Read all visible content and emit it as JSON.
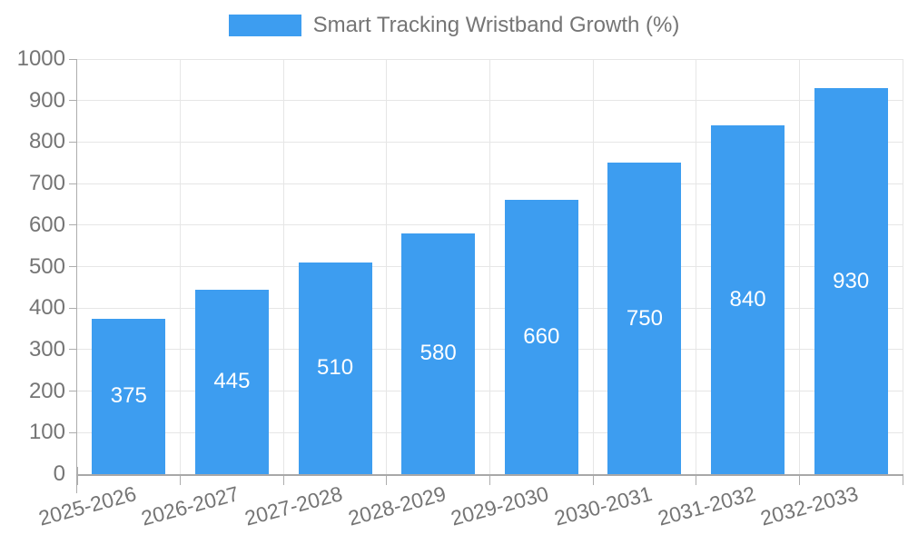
{
  "legend": {
    "label": "Smart Tracking Wristband Growth (%)"
  },
  "chart_data": {
    "type": "bar",
    "title": "Smart Tracking Wristband Growth (%)",
    "series_name": "Smart Tracking Wristband Growth (%)",
    "categories": [
      "2025-2026",
      "2026-2027",
      "2027-2028",
      "2028-2029",
      "2029-2030",
      "2030-2031",
      "2031-2032",
      "2032-2033"
    ],
    "values": [
      375,
      445,
      510,
      580,
      660,
      750,
      840,
      930
    ],
    "xlabel": "",
    "ylabel": "",
    "ylim": [
      0,
      1000
    ],
    "ytick_step": 100,
    "ytick_labels": [
      "0",
      "100",
      "200",
      "300",
      "400",
      "500",
      "600",
      "700",
      "800",
      "900",
      "1000"
    ],
    "grid": true,
    "legend_position": "top",
    "value_labels_inside": true
  },
  "colors": {
    "bar": "#3d9df0",
    "grid": "#e6e6e6",
    "axis": "#adadad",
    "text": "#757575",
    "value_label": "#ffffff",
    "background": "#ffffff"
  }
}
